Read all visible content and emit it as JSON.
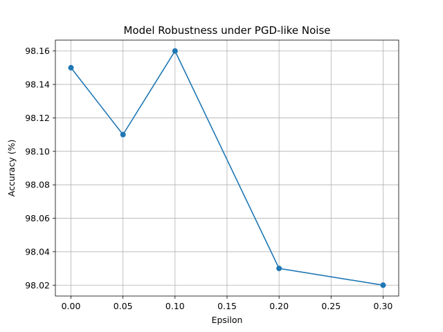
{
  "chart_data": {
    "type": "line",
    "title": "Model Robustness under PGD-like Noise",
    "xlabel": "Epsilon",
    "ylabel": "Accuracy (%)",
    "x": [
      0.0,
      0.05,
      0.1,
      0.2,
      0.3
    ],
    "series": [
      {
        "values": [
          98.15,
          98.11,
          98.16,
          98.03,
          98.02
        ],
        "color": "#1f77b4",
        "marker": "circle"
      }
    ],
    "xlim": [
      -0.015,
      0.315
    ],
    "ylim": [
      98.0135,
      98.1665
    ],
    "xticks": [
      0.0,
      0.05,
      0.1,
      0.15,
      0.2,
      0.25,
      0.3
    ],
    "xtick_labels": [
      "0.00",
      "0.05",
      "0.10",
      "0.15",
      "0.20",
      "0.25",
      "0.30"
    ],
    "yticks": [
      98.02,
      98.04,
      98.06,
      98.08,
      98.1,
      98.12,
      98.14,
      98.16
    ],
    "ytick_labels": [
      "98.02",
      "98.04",
      "98.06",
      "98.08",
      "98.10",
      "98.12",
      "98.14",
      "98.16"
    ],
    "grid": true
  }
}
